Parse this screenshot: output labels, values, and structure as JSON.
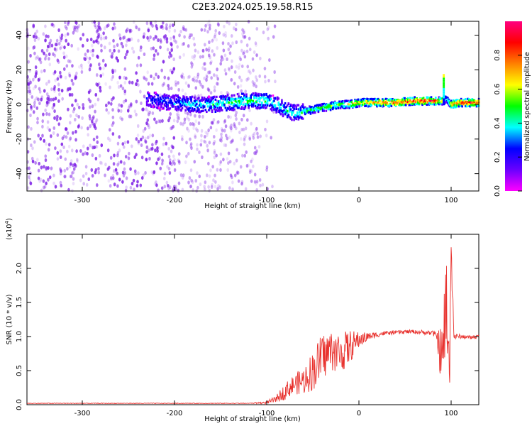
{
  "title": "C2E3.2024.025.19.58.R15",
  "colors": {
    "snr_line": "#e8322e",
    "waterfall_purple": "#7d1fe6",
    "colorbar_stops": [
      "#ff00ff",
      "#6a00ff",
      "#0000ff",
      "#00ffff",
      "#00ff00",
      "#ffff00",
      "#ff8000",
      "#ff0000",
      "#ff0080"
    ]
  },
  "chart_data": [
    {
      "type": "heatmap",
      "xlabel": "Height of straight line (km)",
      "ylabel": "Frequency (Hz)",
      "xlim": [
        -360,
        130
      ],
      "ylim": [
        -50,
        48
      ],
      "x_ticks": [
        -300,
        -200,
        -100,
        0,
        100
      ],
      "y_ticks": [
        -40,
        -20,
        0,
        20,
        40
      ],
      "x_tick_labels": [
        "-300",
        "-200",
        "-100",
        "0",
        "100"
      ],
      "y_tick_labels": [
        "-40",
        "-20",
        "0",
        "20",
        "40"
      ],
      "colorbar": {
        "label": "Normalized spectral amplitude",
        "range": [
          0,
          1
        ],
        "ticks": [
          0.0,
          0.2,
          0.4,
          0.6,
          0.8
        ],
        "tick_labels": [
          "0.0",
          "0.2",
          "0.4",
          "0.6",
          "0.8"
        ]
      },
      "noise_region": {
        "x_start": -360,
        "x_end": -110,
        "freq_range": [
          -50,
          48
        ],
        "amplitude": 0.15
      },
      "signal_track": {
        "x": [
          -230,
          -200,
          -180,
          -160,
          -140,
          -120,
          -100,
          -90,
          -80,
          -70,
          -60,
          -50,
          -40,
          -30,
          -20,
          -10,
          0,
          20,
          40,
          60,
          80,
          90,
          95,
          100,
          110,
          130
        ],
        "freq": [
          3,
          1,
          0,
          0,
          1,
          2,
          2,
          0,
          -3,
          -5,
          -4,
          -3,
          -2,
          -1,
          0,
          0,
          1,
          1,
          1,
          2,
          2,
          2,
          3,
          0,
          1,
          1
        ],
        "amplitude": [
          0.25,
          0.3,
          0.35,
          0.4,
          0.45,
          0.5,
          0.45,
          0.4,
          0.4,
          0.45,
          0.45,
          0.5,
          0.5,
          0.55,
          0.6,
          0.65,
          0.7,
          0.8,
          0.85,
          0.9,
          0.9,
          0.7,
          0.4,
          0.7,
          0.9,
          0.9
        ]
      },
      "burst": {
        "x": 92,
        "freq_range": [
          0,
          17
        ]
      }
    },
    {
      "type": "line",
      "xlabel": "Height of straight line (km)",
      "ylabel": "SNR (10 * v/v)",
      "multiplier_label": "(x10",
      "multiplier_exponent": "4",
      "multiplier_close": ")",
      "xlim": [
        -360,
        130
      ],
      "ylim": [
        0,
        2.5
      ],
      "x_ticks": [
        -300,
        -200,
        -100,
        0,
        100
      ],
      "y_ticks": [
        0.0,
        0.5,
        1.0,
        1.5,
        2.0
      ],
      "x_tick_labels": [
        "-300",
        "-200",
        "-100",
        "0",
        "100"
      ],
      "y_tick_labels": [
        "0.0",
        "0.5",
        "1.0",
        "1.5",
        "2.0"
      ],
      "series": [
        {
          "x": [
            -360,
            -300,
            -200,
            -120,
            -100,
            -90,
            -80,
            -70,
            -60,
            -50,
            -40,
            -30,
            -20,
            -10,
            0,
            10,
            20,
            30,
            40,
            50,
            60,
            70,
            80,
            85,
            90,
            95,
            98,
            100,
            103,
            110,
            120,
            130
          ],
          "values": [
            0.02,
            0.02,
            0.02,
            0.02,
            0.03,
            0.08,
            0.2,
            0.3,
            0.35,
            0.5,
            0.7,
            0.8,
            0.75,
            0.85,
            0.95,
            1.0,
            1.03,
            1.05,
            1.06,
            1.07,
            1.07,
            1.06,
            1.05,
            1.0,
            0.6,
            1.5,
            0.3,
            2.4,
            1.0,
            1.0,
            0.99,
            1.0
          ],
          "noise": [
            0,
            0,
            0,
            0,
            0.02,
            0.05,
            0.12,
            0.15,
            0.2,
            0.3,
            0.35,
            0.3,
            0.3,
            0.25,
            0.12,
            0.06,
            0.04,
            0.03,
            0.03,
            0.03,
            0.03,
            0.03,
            0.04,
            0.08,
            0.6,
            0.8,
            0.6,
            0.4,
            0.05,
            0.03,
            0.03,
            0.03
          ]
        }
      ]
    }
  ]
}
